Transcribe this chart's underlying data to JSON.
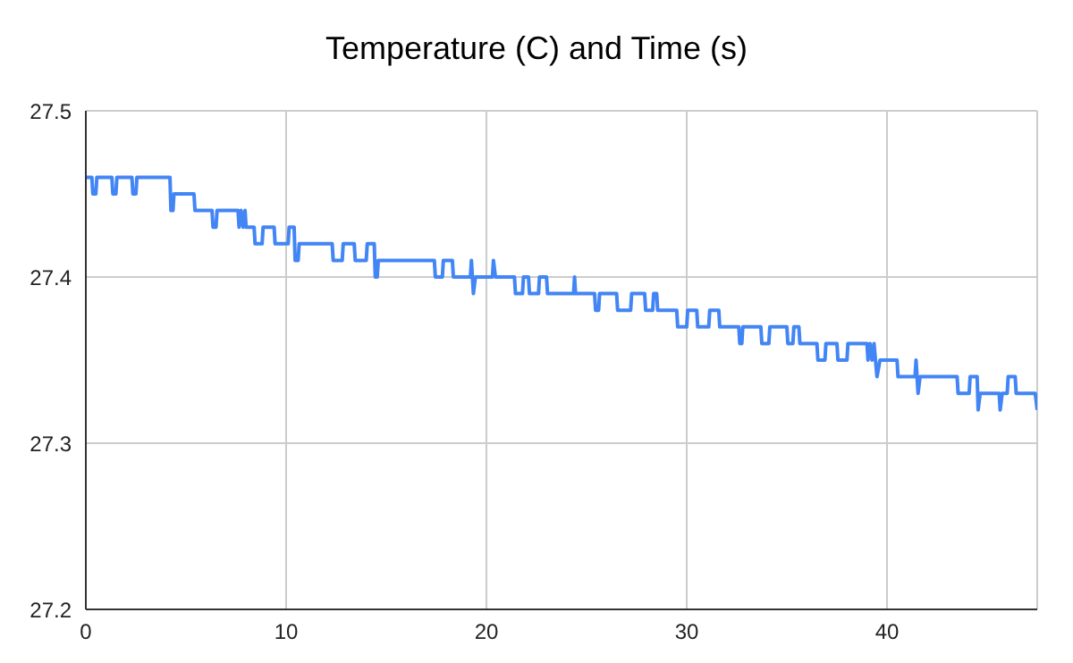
{
  "chart_data": {
    "type": "line",
    "title": "Temperature (C) and Time (s)",
    "x": [
      0,
      0.3,
      0.35,
      0.5,
      0.55,
      1.3,
      1.35,
      1.5,
      1.55,
      2.3,
      2.35,
      2.5,
      2.55,
      4.2,
      4.25,
      4.35,
      4.4,
      5.4,
      5.45,
      6.3,
      6.35,
      6.5,
      6.55,
      7.6,
      7.65,
      7.75,
      7.85,
      7.95,
      8.0,
      8.4,
      8.45,
      8.8,
      8.85,
      9.4,
      9.45,
      10.1,
      10.15,
      10.4,
      10.45,
      10.6,
      10.65,
      12.3,
      12.35,
      12.8,
      12.85,
      13.4,
      13.45,
      14.0,
      14.05,
      14.4,
      14.45,
      14.55,
      14.6,
      17.4,
      17.45,
      17.8,
      17.85,
      18.3,
      18.35,
      19.2,
      19.25,
      19.35,
      19.45,
      20.3,
      20.35,
      20.45,
      21.4,
      21.45,
      21.8,
      21.85,
      22.1,
      22.15,
      22.6,
      22.65,
      23.0,
      23.05,
      24.35,
      24.4,
      24.45,
      25.4,
      25.45,
      25.6,
      25.65,
      26.5,
      26.55,
      27.2,
      27.25,
      27.9,
      27.95,
      28.3,
      28.35,
      28.5,
      28.55,
      29.5,
      29.55,
      30.0,
      30.05,
      30.5,
      30.55,
      31.1,
      31.15,
      31.6,
      31.65,
      32.6,
      32.65,
      32.75,
      32.8,
      33.7,
      33.75,
      34.1,
      34.15,
      35.0,
      35.05,
      35.3,
      35.35,
      35.6,
      35.65,
      36.5,
      36.55,
      36.9,
      36.95,
      37.5,
      37.55,
      38.0,
      38.05,
      39.0,
      39.05,
      39.15,
      39.25,
      39.35,
      39.5,
      39.65,
      40.5,
      40.55,
      41.4,
      41.45,
      41.55,
      41.65,
      43.5,
      43.55,
      44.1,
      44.15,
      44.5,
      44.55,
      44.65,
      45.6,
      45.65,
      45.75,
      46.0,
      46.05,
      46.4,
      46.45,
      47.4,
      47.5
    ],
    "series": [
      {
        "color": "#4285f4",
        "values": [
          27.46,
          27.46,
          27.45,
          27.45,
          27.46,
          27.46,
          27.45,
          27.45,
          27.46,
          27.46,
          27.45,
          27.45,
          27.46,
          27.46,
          27.44,
          27.44,
          27.45,
          27.45,
          27.44,
          27.44,
          27.43,
          27.43,
          27.44,
          27.44,
          27.43,
          27.44,
          27.43,
          27.44,
          27.43,
          27.43,
          27.42,
          27.42,
          27.43,
          27.43,
          27.42,
          27.42,
          27.43,
          27.43,
          27.41,
          27.41,
          27.42,
          27.42,
          27.41,
          27.41,
          27.42,
          27.42,
          27.41,
          27.41,
          27.42,
          27.42,
          27.4,
          27.4,
          27.41,
          27.41,
          27.4,
          27.4,
          27.41,
          27.41,
          27.4,
          27.4,
          27.41,
          27.39,
          27.4,
          27.4,
          27.41,
          27.4,
          27.4,
          27.39,
          27.39,
          27.4,
          27.4,
          27.39,
          27.39,
          27.4,
          27.4,
          27.39,
          27.39,
          27.4,
          27.39,
          27.39,
          27.38,
          27.38,
          27.39,
          27.39,
          27.38,
          27.38,
          27.39,
          27.39,
          27.38,
          27.38,
          27.39,
          27.39,
          27.38,
          27.38,
          27.37,
          27.37,
          27.38,
          27.38,
          27.37,
          27.37,
          27.38,
          27.38,
          27.37,
          27.37,
          27.36,
          27.36,
          27.37,
          27.37,
          27.36,
          27.36,
          27.37,
          27.37,
          27.36,
          27.36,
          27.37,
          27.37,
          27.36,
          27.36,
          27.35,
          27.35,
          27.36,
          27.36,
          27.35,
          27.35,
          27.36,
          27.36,
          27.35,
          27.36,
          27.35,
          27.36,
          27.34,
          27.35,
          27.35,
          27.34,
          27.34,
          27.35,
          27.33,
          27.34,
          27.34,
          27.33,
          27.33,
          27.34,
          27.34,
          27.32,
          27.33,
          27.33,
          27.32,
          27.33,
          27.33,
          27.34,
          27.34,
          27.33,
          27.33,
          27.32
        ]
      }
    ],
    "xlim": [
      0,
      47.5
    ],
    "xticks": [
      0,
      10,
      20,
      30,
      40
    ],
    "ylim": [
      27.2,
      27.5
    ],
    "yticks": [
      27.2,
      27.3,
      27.4,
      27.5
    ],
    "grid": true
  }
}
